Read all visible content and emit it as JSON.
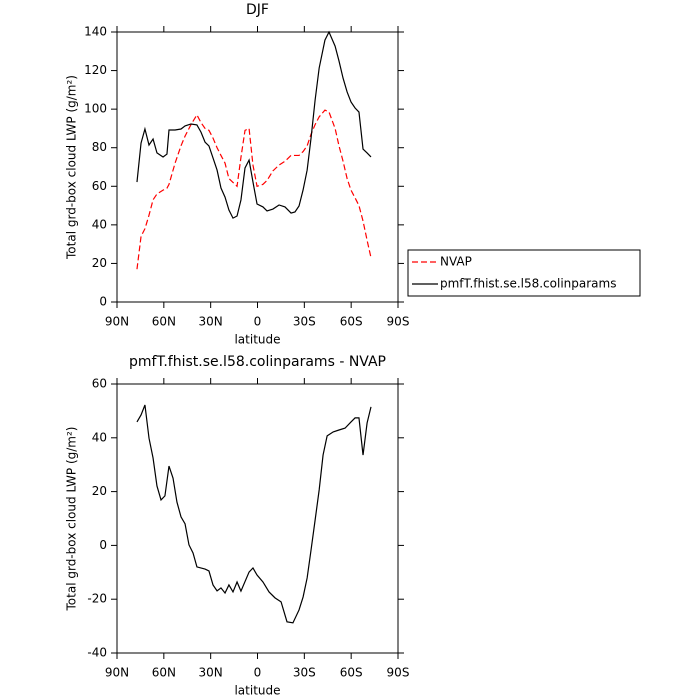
{
  "chart_data": [
    {
      "type": "line",
      "title": "DJF",
      "xlabel": "latitude",
      "ylabel": "Total grd-box cloud LWP (g/m²)",
      "x": [
        77.2,
        74.6,
        72.1,
        69.5,
        66.9,
        64.4,
        60.5,
        58.0,
        56.7,
        52.8,
        49.0,
        46.4,
        42.6,
        38.8,
        36.2,
        33.6,
        31.1,
        28.5,
        25.9,
        23.4,
        20.8,
        18.3,
        15.7,
        13.1,
        10.6,
        8.0,
        5.4,
        2.9,
        0.3,
        -3.5,
        -6.1,
        -9.9,
        -13.8,
        -17.6,
        -21.5,
        -24.0,
        -26.6,
        -29.2,
        -31.8,
        -34.3,
        -36.9,
        -39.5,
        -43.2,
        -45.8,
        -49.7,
        -52.2,
        -54.8,
        -57.4,
        -59.9,
        -62.5,
        -65.0,
        -67.6,
        -70.2,
        -72.7
      ],
      "series": [
        {
          "name": "NVAP",
          "color": "#ff0000",
          "dashed": true,
          "values": [
            17,
            34,
            38,
            45,
            53,
            56,
            58,
            59,
            61,
            72,
            81,
            86,
            92,
            97,
            93,
            90,
            89,
            85,
            80,
            76,
            72,
            64,
            62,
            60,
            75,
            89,
            90,
            71,
            60,
            61,
            63,
            68,
            71,
            73,
            76,
            76,
            76,
            78,
            81,
            87,
            92,
            96,
            99.5,
            98.5,
            90,
            81,
            73,
            64,
            58,
            54,
            50,
            42,
            32,
            23
          ]
        },
        {
          "name": "pmfT.fhist.se.l58.colinparams",
          "color": "#000000",
          "dashed": false,
          "values": [
            62.2,
            82.4,
            89.7,
            81.4,
            84.5,
            77.3,
            75.2,
            76.7,
            89.2,
            89.2,
            89.7,
            91.3,
            92.3,
            91.8,
            88.1,
            82.9,
            80.9,
            74.7,
            68.4,
            59.1,
            54.4,
            47.7,
            43.5,
            44.6,
            52.9,
            69.5,
            73.6,
            62.2,
            50.8,
            49.3,
            47.2,
            48.2,
            50.3,
            49.3,
            46.1,
            46.7,
            49.8,
            58.1,
            68.4,
            85.0,
            104.7,
            121.3,
            135.8,
            140.0,
            132.7,
            125.0,
            116.1,
            108.9,
            103.7,
            100.6,
            98.5,
            79.3,
            77.3,
            75.2
          ]
        }
      ],
      "xlim": [
        90,
        -90
      ],
      "xticks": [
        {
          "value": 90,
          "label": "90N"
        },
        {
          "value": 60,
          "label": "60N"
        },
        {
          "value": 30,
          "label": "30N"
        },
        0,
        {
          "value": -30,
          "label": "30S"
        },
        {
          "value": -60,
          "label": "60S"
        },
        {
          "value": -90,
          "label": "90S"
        }
      ],
      "ylim": [
        0,
        140
      ],
      "yticks": [
        0,
        20,
        40,
        60,
        80,
        100,
        120,
        140
      ],
      "legend": "right"
    },
    {
      "type": "line",
      "title": "pmfT.fhist.se.l58.colinparams - NVAP",
      "xlabel": "latitude",
      "ylabel": "Total grd-box cloud LWP (g/m²)",
      "x": [
        77.2,
        74.6,
        72.1,
        69.5,
        66.9,
        64.4,
        61.8,
        59.3,
        56.7,
        54.1,
        51.6,
        49.0,
        46.4,
        43.9,
        41.3,
        38.8,
        33.6,
        31.1,
        28.5,
        25.9,
        23.4,
        20.8,
        18.3,
        15.7,
        13.1,
        10.6,
        5.4,
        2.9,
        0.3,
        -3.5,
        -7.4,
        -11.2,
        -15.1,
        -18.9,
        -22.7,
        -26.6,
        -29.2,
        -31.8,
        -34.3,
        -36.9,
        -39.5,
        -42.0,
        -44.6,
        -48.5,
        -52.2,
        -56.1,
        -59.9,
        -62.5,
        -65.0,
        -67.6,
        -70.2,
        -72.7
      ],
      "series": [
        {
          "color": "#000000",
          "dashed": false,
          "values": [
            45.9,
            48.5,
            52.2,
            39.9,
            32.5,
            22.1,
            16.9,
            18.4,
            29.5,
            25,
            16.1,
            10.6,
            8,
            0.2,
            -2.8,
            -8,
            -8.8,
            -9.5,
            -14.7,
            -16.9,
            -15.8,
            -17.7,
            -14.7,
            -17.3,
            -13.6,
            -17,
            -9.9,
            -8.4,
            -11,
            -13.6,
            -17.3,
            -19.5,
            -21,
            -28.4,
            -28.8,
            -24,
            -19.2,
            -12.1,
            -1.7,
            9.4,
            20.6,
            33.6,
            40.7,
            42.2,
            42.9,
            43.6,
            45.9,
            47.4,
            47.4,
            33.6,
            45.5,
            51.5
          ]
        }
      ],
      "xlim": [
        90,
        -90
      ],
      "xticks": [
        {
          "value": 90,
          "label": "90N"
        },
        {
          "value": 60,
          "label": "60N"
        },
        {
          "value": 30,
          "label": "30N"
        },
        0,
        {
          "value": -30,
          "label": "30S"
        },
        {
          "value": -60,
          "label": "60S"
        },
        {
          "value": -90,
          "label": "90S"
        }
      ],
      "ylim": [
        -40,
        60
      ],
      "yticks": [
        -40,
        -20,
        0,
        20,
        40,
        60
      ]
    }
  ]
}
